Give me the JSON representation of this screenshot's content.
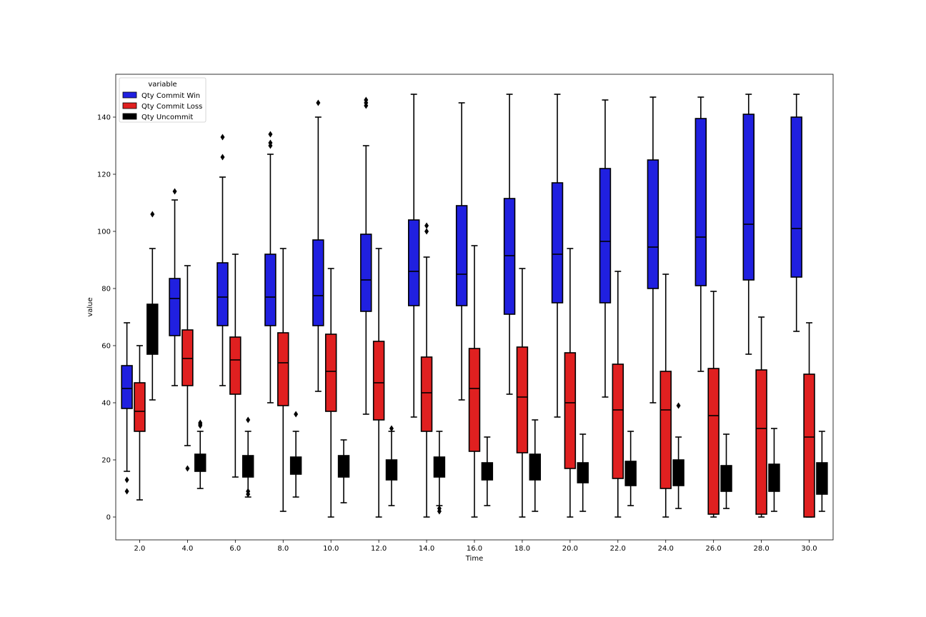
{
  "chart_data": {
    "type": "box",
    "xlabel": "Time",
    "ylabel": "value",
    "ylim": [
      -8,
      155
    ],
    "yticks": [
      0,
      20,
      40,
      60,
      80,
      100,
      120,
      140
    ],
    "categories": [
      "2.0",
      "4.0",
      "6.0",
      "8.0",
      "10.0",
      "12.0",
      "14.0",
      "16.0",
      "18.0",
      "20.0",
      "22.0",
      "24.0",
      "26.0",
      "28.0",
      "30.0"
    ],
    "legend": {
      "title": "variable",
      "position": "top-left"
    },
    "series": [
      {
        "name": "Qty Commit Win",
        "color": "#2020e0",
        "boxes": [
          {
            "whislo": 16,
            "q1": 38,
            "med": 45,
            "q3": 53,
            "whishi": 68,
            "fliers": [
              13,
              9
            ]
          },
          {
            "whislo": 46,
            "q1": 63.5,
            "med": 76.5,
            "q3": 83.5,
            "whishi": 111,
            "fliers": [
              114
            ]
          },
          {
            "whislo": 46,
            "q1": 67,
            "med": 77,
            "q3": 89,
            "whishi": 119,
            "fliers": [
              126,
              133
            ]
          },
          {
            "whislo": 40,
            "q1": 67,
            "med": 77,
            "q3": 92,
            "whishi": 127,
            "fliers": [
              130,
              131,
              134
            ]
          },
          {
            "whislo": 44,
            "q1": 67,
            "med": 77.5,
            "q3": 97,
            "whishi": 140,
            "fliers": [
              145
            ]
          },
          {
            "whislo": 36,
            "q1": 72,
            "med": 83,
            "q3": 99,
            "whishi": 130,
            "fliers": [
              144,
              145,
              146
            ]
          },
          {
            "whislo": 35,
            "q1": 74,
            "med": 86,
            "q3": 104,
            "whishi": 148,
            "fliers": []
          },
          {
            "whislo": 41,
            "q1": 74,
            "med": 85,
            "q3": 109,
            "whishi": 145,
            "fliers": []
          },
          {
            "whislo": 43,
            "q1": 71,
            "med": 91.5,
            "q3": 111.5,
            "whishi": 148,
            "fliers": []
          },
          {
            "whislo": 35,
            "q1": 75,
            "med": 92,
            "q3": 117,
            "whishi": 148,
            "fliers": []
          },
          {
            "whislo": 42,
            "q1": 75,
            "med": 96.5,
            "q3": 122,
            "whishi": 146,
            "fliers": []
          },
          {
            "whislo": 40,
            "q1": 80,
            "med": 94.5,
            "q3": 125,
            "whishi": 147,
            "fliers": []
          },
          {
            "whislo": 51,
            "q1": 81,
            "med": 98,
            "q3": 139.5,
            "whishi": 147,
            "fliers": []
          },
          {
            "whislo": 57,
            "q1": 83,
            "med": 102.5,
            "q3": 141,
            "whishi": 148,
            "fliers": []
          },
          {
            "whislo": 65,
            "q1": 84,
            "med": 101,
            "q3": 140,
            "whishi": 148,
            "fliers": []
          }
        ]
      },
      {
        "name": "Qty Commit Loss",
        "color": "#e02020",
        "boxes": [
          {
            "whislo": 6,
            "q1": 30,
            "med": 37,
            "q3": 47,
            "whishi": 60,
            "fliers": []
          },
          {
            "whislo": 25,
            "q1": 46,
            "med": 55.5,
            "q3": 65.5,
            "whishi": 88,
            "fliers": [
              17
            ]
          },
          {
            "whislo": 14,
            "q1": 43,
            "med": 55,
            "q3": 63,
            "whishi": 92,
            "fliers": []
          },
          {
            "whislo": 2,
            "q1": 39,
            "med": 54,
            "q3": 64.5,
            "whishi": 94,
            "fliers": []
          },
          {
            "whislo": 0,
            "q1": 37,
            "med": 51,
            "q3": 64,
            "whishi": 87,
            "fliers": []
          },
          {
            "whislo": 0,
            "q1": 34,
            "med": 47,
            "q3": 61.5,
            "whishi": 94,
            "fliers": []
          },
          {
            "whislo": 0,
            "q1": 30,
            "med": 43.5,
            "q3": 56,
            "whishi": 91,
            "fliers": [
              100,
              102
            ]
          },
          {
            "whislo": 0,
            "q1": 23,
            "med": 45,
            "q3": 59,
            "whishi": 95,
            "fliers": []
          },
          {
            "whislo": 0,
            "q1": 22.5,
            "med": 42,
            "q3": 59.5,
            "whishi": 87,
            "fliers": []
          },
          {
            "whislo": 0,
            "q1": 17,
            "med": 40,
            "q3": 57.5,
            "whishi": 94,
            "fliers": []
          },
          {
            "whislo": 0,
            "q1": 13.5,
            "med": 37.5,
            "q3": 53.5,
            "whishi": 86,
            "fliers": []
          },
          {
            "whislo": 0,
            "q1": 10,
            "med": 37.5,
            "q3": 51,
            "whishi": 85,
            "fliers": []
          },
          {
            "whislo": 0,
            "q1": 1,
            "med": 35.5,
            "q3": 52,
            "whishi": 79,
            "fliers": []
          },
          {
            "whislo": 0,
            "q1": 1,
            "med": 31,
            "q3": 51.5,
            "whishi": 70,
            "fliers": []
          },
          {
            "whislo": 0,
            "q1": 0,
            "med": 28,
            "q3": 50,
            "whishi": 68,
            "fliers": []
          }
        ]
      },
      {
        "name": "Qty Uncommit",
        "color": "#000000",
        "boxes": [
          {
            "whislo": 41,
            "q1": 57,
            "med": 66,
            "q3": 74.5,
            "whishi": 94,
            "fliers": [
              106
            ]
          },
          {
            "whislo": 10,
            "q1": 16,
            "med": 19,
            "q3": 22,
            "whishi": 30,
            "fliers": [
              32,
              33,
              32.5
            ]
          },
          {
            "whislo": 7,
            "q1": 14,
            "med": 18,
            "q3": 21.5,
            "whishi": 30,
            "fliers": [
              34,
              9,
              8
            ]
          },
          {
            "whislo": 7,
            "q1": 15,
            "med": 18,
            "q3": 21,
            "whishi": 30,
            "fliers": [
              36
            ]
          },
          {
            "whislo": 5,
            "q1": 14,
            "med": 18,
            "q3": 21.5,
            "whishi": 27,
            "fliers": []
          },
          {
            "whislo": 4,
            "q1": 13,
            "med": 16,
            "q3": 20,
            "whishi": 30,
            "fliers": [
              31
            ]
          },
          {
            "whislo": 4,
            "q1": 14,
            "med": 18,
            "q3": 21,
            "whishi": 30,
            "fliers": [
              3,
              2
            ]
          },
          {
            "whislo": 4,
            "q1": 13,
            "med": 16,
            "q3": 19,
            "whishi": 28,
            "fliers": []
          },
          {
            "whislo": 2,
            "q1": 13,
            "med": 18,
            "q3": 22,
            "whishi": 34,
            "fliers": []
          },
          {
            "whislo": 2,
            "q1": 12,
            "med": 16,
            "q3": 19,
            "whishi": 29,
            "fliers": []
          },
          {
            "whislo": 4,
            "q1": 11,
            "med": 15,
            "q3": 19.5,
            "whishi": 30,
            "fliers": []
          },
          {
            "whislo": 3,
            "q1": 11,
            "med": 16,
            "q3": 20,
            "whishi": 28,
            "fliers": [
              39
            ]
          },
          {
            "whislo": 3,
            "q1": 9,
            "med": 13,
            "q3": 18,
            "whishi": 29,
            "fliers": []
          },
          {
            "whislo": 2,
            "q1": 9,
            "med": 13,
            "q3": 18.5,
            "whishi": 31,
            "fliers": []
          },
          {
            "whislo": 2,
            "q1": 8,
            "med": 13,
            "q3": 19,
            "whishi": 30,
            "fliers": []
          }
        ]
      }
    ]
  }
}
